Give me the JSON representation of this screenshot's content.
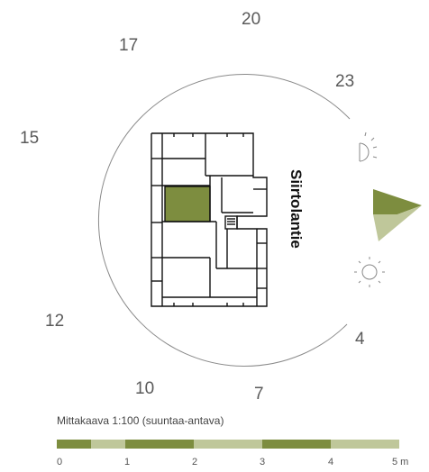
{
  "compass": {
    "hours": [
      "20",
      "17",
      "23",
      "15",
      "12",
      "4",
      "10",
      "7"
    ],
    "sun_icons": [
      "sunset-icon",
      "sunrise-icon"
    ],
    "north_arrow_color": "#7d8d3f"
  },
  "street_name": "Siirtolantie",
  "scale": {
    "title": "Mittakaava 1:100  (suuntaa-antava)",
    "ticks": [
      "0",
      "1",
      "2",
      "3",
      "4",
      "5 m"
    ],
    "colors": {
      "dark": "#7d8d3f",
      "light": "#bfc79a"
    }
  },
  "highlight_color": "#7d8d3f"
}
